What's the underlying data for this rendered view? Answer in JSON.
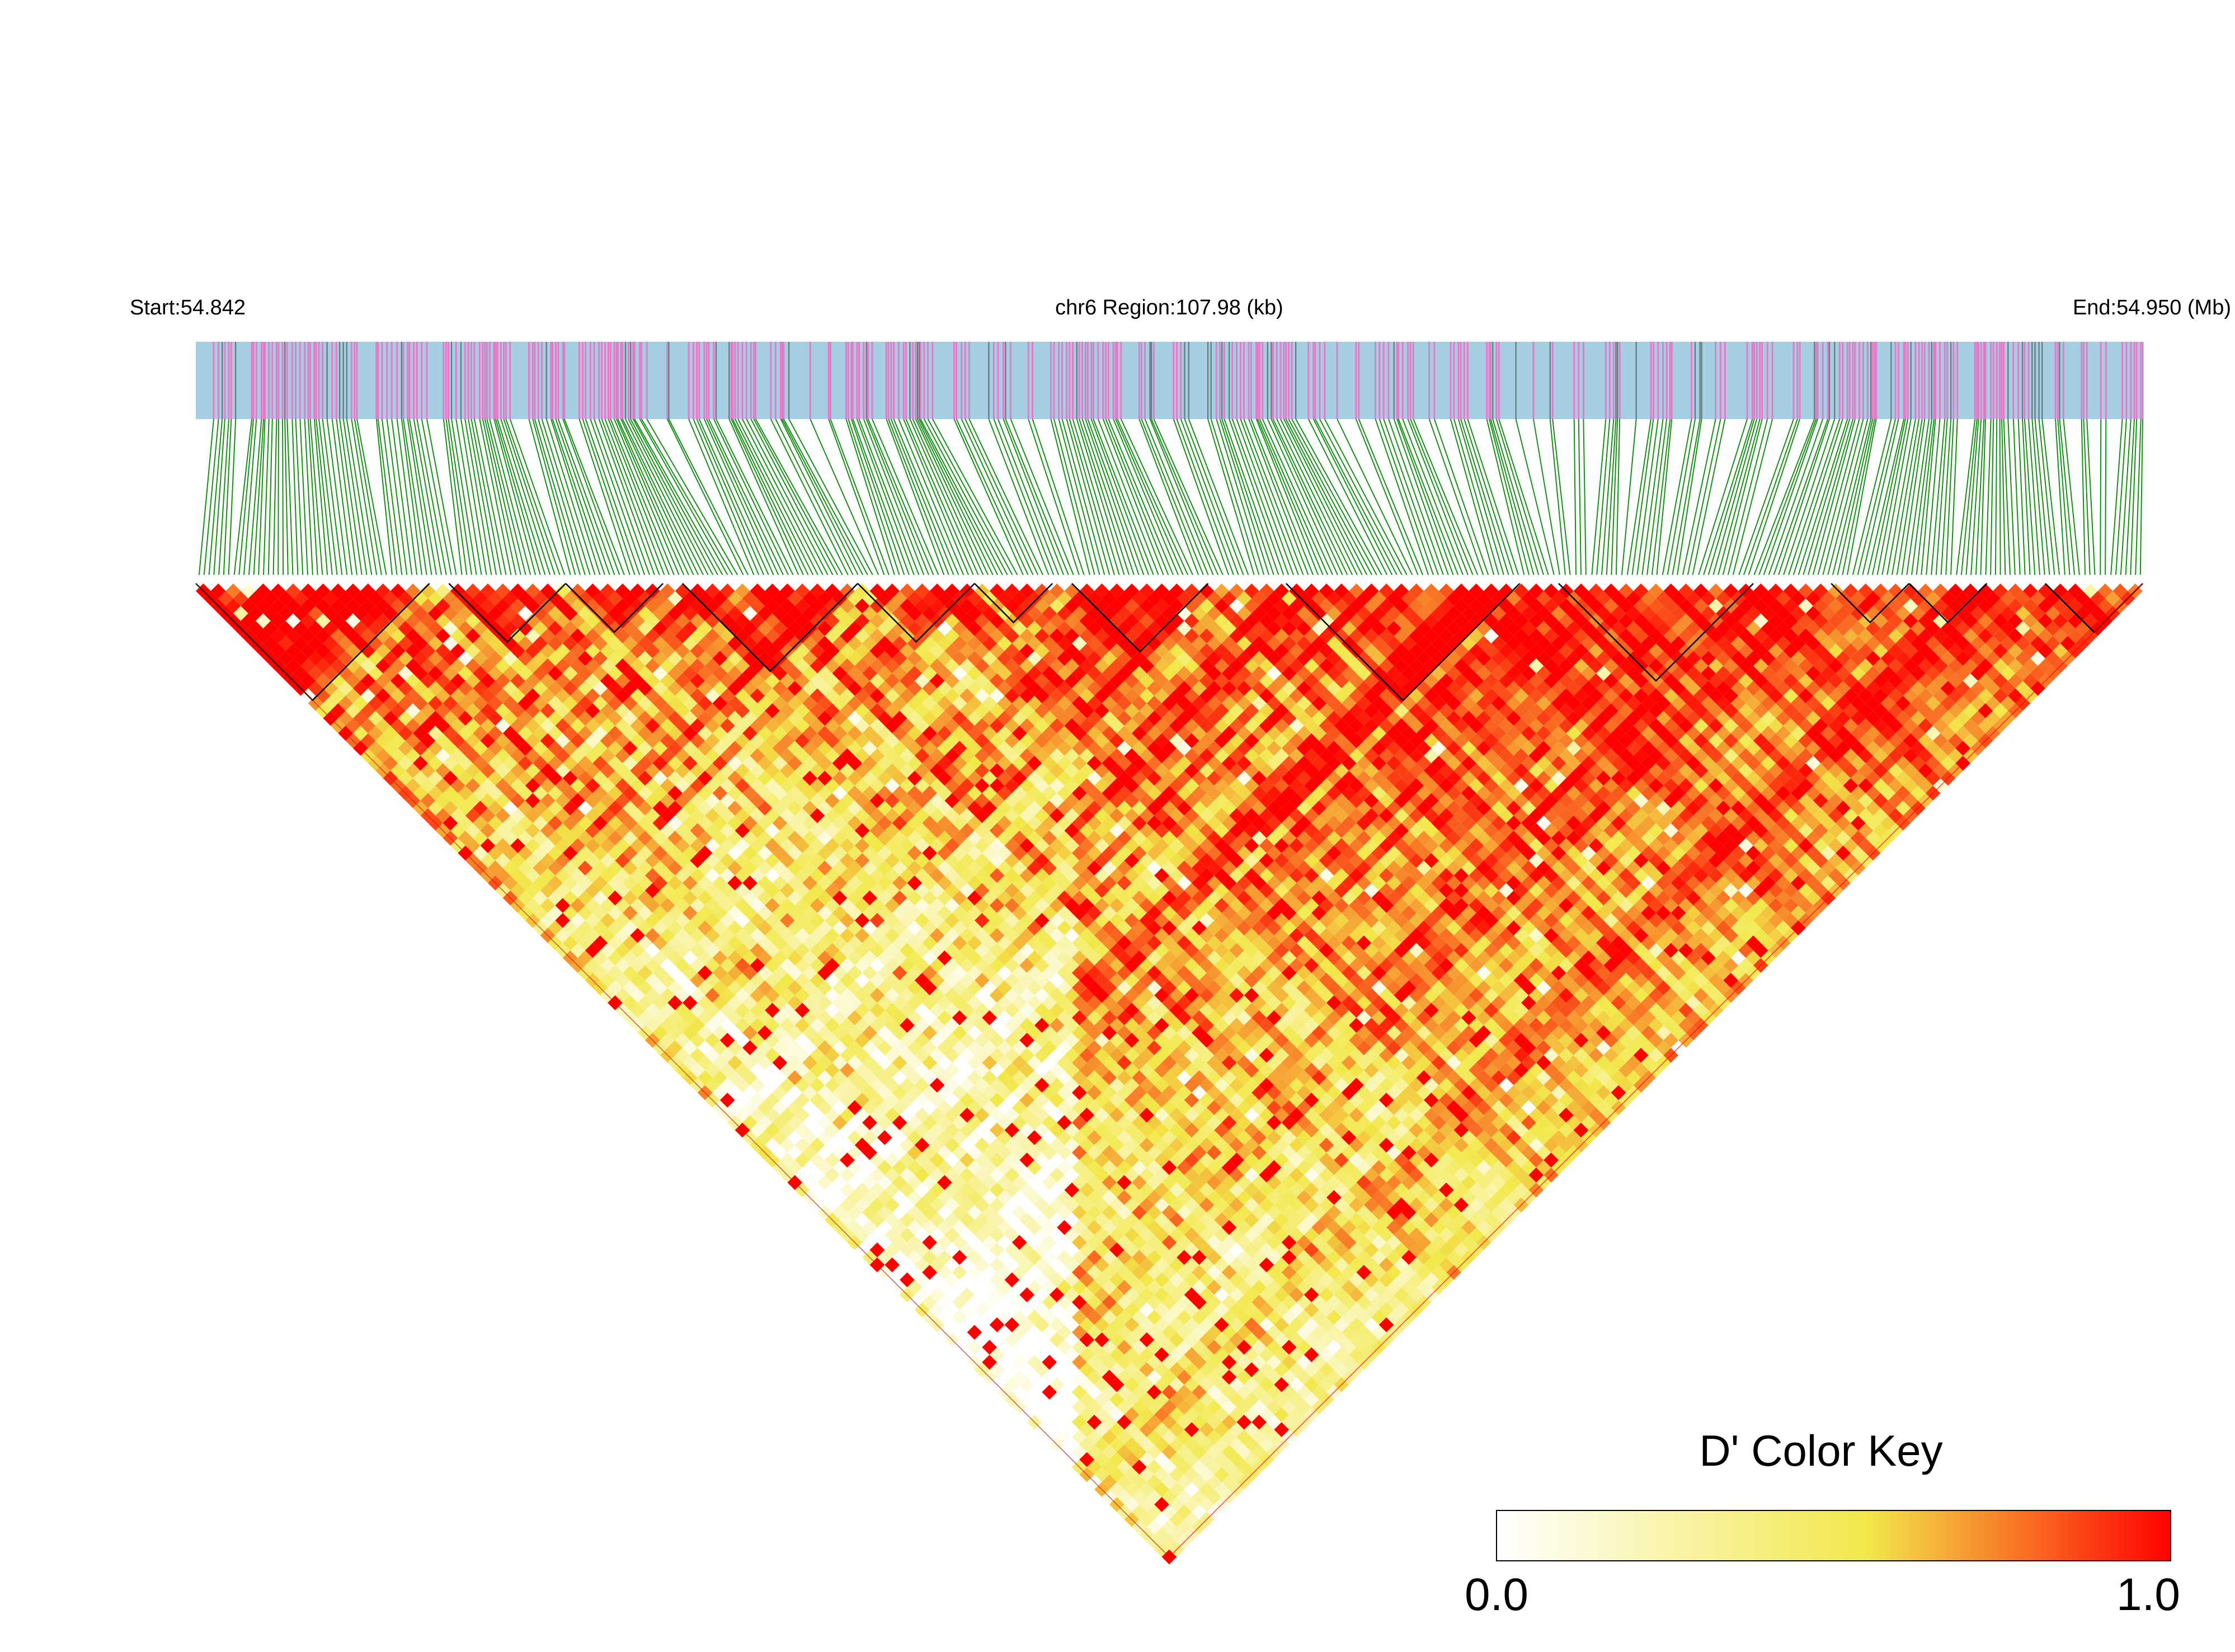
{
  "chart_data": {
    "type": "heatmap",
    "subtype": "linkage-disequilibrium triangle (D')",
    "header": {
      "start_label": "Start:54.842",
      "region_label": "chr6 Region:107.98 (kb)",
      "end_label": "End:54.950 (Mb)"
    },
    "region": {
      "chromosome": "chr6",
      "start_mb": 54.842,
      "end_mb": 54.95,
      "length_kb": 107.98
    },
    "snp_count_approx": 390,
    "color_key": {
      "title": "D' Color Key",
      "min_label": "0.0",
      "max_label": "1.0",
      "range": [
        0.0,
        1.0
      ],
      "colors": [
        "#ffffff",
        "#f2e84a",
        "#ff0000"
      ]
    },
    "colors": {
      "track_background": "#a6cee3",
      "track_snp_marks": "#e67ac8",
      "track_dense_marks": "#607a7a",
      "connector_lines": "#158f15",
      "high_ld": "#ff0000",
      "mid_ld": "#f2e84a",
      "low_ld": "#ffffff",
      "block_outline": "#000000"
    },
    "haplotype_blocks_approx": [
      [
        0.0,
        0.12
      ],
      [
        0.13,
        0.19
      ],
      [
        0.19,
        0.24
      ],
      [
        0.25,
        0.34
      ],
      [
        0.34,
        0.4
      ],
      [
        0.4,
        0.44
      ],
      [
        0.45,
        0.52
      ],
      [
        0.56,
        0.68
      ],
      [
        0.7,
        0.8
      ],
      [
        0.84,
        0.88
      ],
      [
        0.88,
        0.92
      ],
      [
        0.95,
        1.0
      ]
    ],
    "ld_pattern_approx": [
      {
        "region": "left block, near diagonal",
        "d_prime": 0.95
      },
      {
        "region": "left-middle deep interior",
        "d_prime": 0.45
      },
      {
        "region": "middle block",
        "d_prime": 0.75
      },
      {
        "region": "right block",
        "d_prime": 0.98
      }
    ]
  }
}
